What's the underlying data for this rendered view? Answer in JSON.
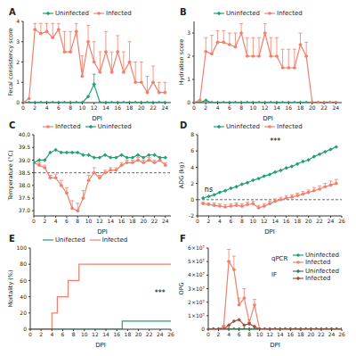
{
  "chart_data": [
    {
      "type": "line",
      "title": "A",
      "x_label": "DPI",
      "y_label": "Fecal consistency score",
      "x": [
        0,
        1,
        2,
        3,
        4,
        5,
        6,
        7,
        8,
        9,
        10,
        11,
        12,
        13,
        14,
        15,
        16,
        17,
        18,
        19,
        20,
        21,
        22,
        23,
        24
      ],
      "xlim": [
        0,
        25
      ],
      "xticks": [
        0,
        2,
        4,
        6,
        8,
        10,
        12,
        14,
        16,
        18,
        20,
        22,
        24
      ],
      "ylim": [
        0,
        4
      ],
      "yticks": [
        0,
        1,
        2,
        3,
        4
      ],
      "series": [
        {
          "name": "Uninfected",
          "color": "#23a174",
          "marker": "diamond",
          "values": [
            0,
            0,
            0,
            0,
            0,
            0,
            0,
            0,
            0,
            0,
            0,
            0.3,
            0.9,
            0,
            0,
            0,
            0,
            0,
            0,
            0,
            0,
            0,
            0,
            0,
            0
          ],
          "errors": [
            null,
            null,
            null,
            null,
            null,
            null,
            null,
            null,
            null,
            null,
            null,
            null,
            0.5,
            null,
            null,
            null,
            null,
            null,
            null,
            null,
            null,
            null,
            null,
            null,
            null
          ]
        },
        {
          "name": "Infected",
          "color": "#f0806c",
          "marker": "circle",
          "values": [
            0,
            0.2,
            3.6,
            3.4,
            3.5,
            3.2,
            3.6,
            2.5,
            2.5,
            3.5,
            1.3,
            3,
            2,
            1.5,
            2.5,
            1.5,
            2.5,
            1.5,
            2,
            1,
            1,
            0.5,
            1,
            0.5,
            0.5
          ],
          "errors": [
            null,
            null,
            0.3,
            0.5,
            0.4,
            0.7,
            0.3,
            1,
            1,
            0.4,
            1,
            0.8,
            1,
            1,
            1,
            1,
            0.8,
            1,
            1,
            1,
            1,
            0.8,
            0.8,
            0.5,
            0.5
          ]
        }
      ]
    },
    {
      "type": "line",
      "title": "B",
      "x_label": "DPI",
      "y_label": "Hydration score",
      "x": [
        0,
        1,
        2,
        3,
        4,
        5,
        6,
        7,
        8,
        9,
        10,
        11,
        12,
        13,
        14,
        15,
        16,
        17,
        18,
        19,
        20,
        21,
        22,
        23,
        24
      ],
      "xlim": [
        0,
        25
      ],
      "xticks": [
        0,
        2,
        4,
        6,
        8,
        10,
        12,
        14,
        16,
        18,
        20,
        22,
        24
      ],
      "ylim": [
        0,
        3.5
      ],
      "yticks": [
        0,
        1,
        2,
        3
      ],
      "series": [
        {
          "name": "Uninfected",
          "color": "#23a174",
          "marker": "diamond",
          "values": [
            0,
            0,
            0.1,
            0,
            0,
            0,
            0,
            0,
            0,
            0,
            0,
            0,
            0,
            0,
            0,
            0,
            0,
            0,
            0,
            0,
            0,
            0,
            0,
            0,
            0
          ]
        },
        {
          "name": "Infected",
          "color": "#f0806c",
          "marker": "circle",
          "values": [
            0,
            0.1,
            2.2,
            2.1,
            2.6,
            2.6,
            2.5,
            2.4,
            3,
            2,
            2,
            2,
            3,
            2,
            2,
            1.5,
            1.5,
            1.5,
            2.5,
            2,
            0,
            0,
            0,
            0,
            0
          ],
          "errors": [
            null,
            null,
            0.6,
            0.8,
            0.5,
            0.5,
            0.5,
            0.6,
            0.4,
            0.8,
            0.8,
            0.8,
            0.4,
            0.8,
            0.8,
            0.8,
            0.8,
            0.8,
            0.5,
            0.6,
            null,
            null,
            null,
            null,
            null
          ]
        }
      ]
    },
    {
      "type": "line",
      "title": "C",
      "x_label": "DPI",
      "y_label": "Temperature (°C)",
      "x": [
        0,
        1,
        2,
        3,
        4,
        5,
        6,
        7,
        8,
        9,
        10,
        11,
        12,
        13,
        14,
        15,
        16,
        17,
        18,
        19,
        20,
        21,
        22,
        23,
        24
      ],
      "xlim": [
        0,
        25
      ],
      "xticks": [
        0,
        2,
        4,
        6,
        8,
        10,
        12,
        14,
        16,
        18,
        20,
        22,
        24
      ],
      "ylim": [
        36.8,
        40
      ],
      "yticks": [
        {
          "value": 37,
          "label": "37.0"
        },
        37.5,
        {
          "value": 38,
          "label": "38.0"
        },
        38.5,
        {
          "value": 39,
          "label": "39.0"
        },
        39.5,
        {
          "value": 40,
          "label": "40.0"
        }
      ],
      "threshold": 38.5,
      "series": [
        {
          "name": "Infected",
          "color": "#f0806c",
          "marker": "circle",
          "values": [
            38.9,
            38.8,
            38.7,
            38.3,
            38.3,
            38.0,
            37.7,
            37.1,
            37.0,
            37.5,
            38.2,
            38.5,
            38.3,
            38.5,
            38.6,
            38.6,
            38.8,
            38.9,
            38.9,
            39.0,
            38.9,
            39.0,
            38.9,
            39.0,
            38.8
          ],
          "errors": [
            null,
            0.1,
            0.1,
            0.1,
            0.15,
            0.2,
            0.2,
            0.3,
            0.3,
            0.3,
            0.2,
            0.2,
            0.1,
            0.1,
            0.1,
            0.1,
            0.1,
            0.1,
            0.1,
            0.1,
            0.1,
            0.1,
            0.1,
            0.1,
            0.1
          ]
        },
        {
          "name": "Uninfected",
          "color": "#23a174",
          "marker": "diamond",
          "values": [
            38.9,
            39.0,
            39.0,
            39.3,
            39.4,
            39.3,
            39.3,
            39.3,
            39.3,
            39.2,
            39.2,
            39.1,
            39.1,
            39.2,
            39.1,
            39.1,
            39.2,
            39.1,
            39.1,
            39.2,
            39.1,
            39.2,
            39.2,
            39.1,
            39.1
          ]
        }
      ]
    },
    {
      "type": "line",
      "title": "D",
      "x_label": "DPI",
      "y_label": "ADG (kg)",
      "x": [
        1,
        2,
        3,
        4,
        5,
        6,
        7,
        8,
        9,
        10,
        11,
        12,
        13,
        14,
        15,
        16,
        17,
        18,
        19,
        20,
        21,
        22,
        23,
        24,
        25
      ],
      "xlim": [
        0,
        26
      ],
      "xticks": [
        0,
        2,
        4,
        6,
        8,
        10,
        12,
        14,
        16,
        18,
        20,
        22,
        24,
        26
      ],
      "ylim": [
        -2,
        8
      ],
      "yticks": [
        -2,
        0,
        2,
        4,
        6,
        8
      ],
      "threshold": 0,
      "annotations": [
        {
          "text": "ns",
          "x": 2,
          "y": 1.3
        },
        {
          "text": "***",
          "x": 14,
          "y": 7.2
        }
      ],
      "series": [
        {
          "name": "Uninfected",
          "color": "#23a174",
          "marker": "diamond",
          "values": [
            0.2,
            0.4,
            0.6,
            0.9,
            1.1,
            1.4,
            1.6,
            1.9,
            2.1,
            2.4,
            2.6,
            2.9,
            3.1,
            3.4,
            3.6,
            3.9,
            4.1,
            4.4,
            4.7,
            4.9,
            5.3,
            5.6,
            5.9,
            6.2,
            6.5
          ]
        },
        {
          "name": "Infected",
          "color": "#f0806c",
          "marker": "circle",
          "values": [
            -0.5,
            -0.6,
            -0.7,
            -0.8,
            -0.9,
            -0.8,
            -0.7,
            -0.8,
            -0.6,
            -0.5,
            -1.0,
            -0.8,
            -0.5,
            -0.2,
            0,
            0.2,
            0.3,
            0.5,
            0.7,
            0.9,
            1.1,
            1.3,
            1.6,
            1.8,
            2.0
          ],
          "errors": [
            0.2,
            0.2,
            0.3,
            0.3,
            0.3,
            0.3,
            0.3,
            0.3,
            0.3,
            0.3,
            0.3,
            0.3,
            0.3,
            0.3,
            0.3,
            0.3,
            0.3,
            0.3,
            0.3,
            0.3,
            0.4,
            0.4,
            0.4,
            0.5,
            0.5
          ]
        }
      ]
    },
    {
      "type": "step",
      "title": "E",
      "x_label": "DPI",
      "y_label": "Mortality (%)",
      "xlim": [
        0,
        26
      ],
      "xticks": [
        0,
        2,
        4,
        6,
        8,
        10,
        12,
        14,
        16,
        18,
        20,
        22,
        24,
        26
      ],
      "ylim": [
        0,
        100
      ],
      "yticks": [
        0,
        20,
        40,
        60,
        80,
        100
      ],
      "annotations": [
        {
          "text": "***",
          "x": 24,
          "y": 45
        }
      ],
      "series": [
        {
          "name": "Unifected",
          "color": "#23a174",
          "marker": "none",
          "x": [
            0,
            17,
            26
          ],
          "values": [
            0,
            10,
            10
          ]
        },
        {
          "name": "Infected",
          "color": "#f0806c",
          "marker": "none",
          "x": [
            0,
            4,
            5,
            7,
            9,
            26
          ],
          "values": [
            0,
            20,
            40,
            60,
            80,
            80
          ]
        }
      ]
    },
    {
      "type": "line",
      "title": "F",
      "x_label": "DPI",
      "y_label": "OPG",
      "x": [
        0,
        1,
        2,
        3,
        4,
        5,
        6,
        7,
        8,
        9,
        10,
        11,
        12,
        13,
        14,
        15,
        16,
        17,
        18,
        19,
        20,
        21,
        22,
        23,
        24,
        25,
        26
      ],
      "xlim": [
        0,
        26
      ],
      "xticks": [
        0,
        2,
        4,
        6,
        8,
        10,
        12,
        14,
        16,
        18,
        20,
        22,
        24,
        26
      ],
      "ylim": [
        0,
        60000000
      ],
      "yticks": [
        0,
        {
          "value": 10000000,
          "label": "1×10⁷"
        },
        {
          "value": 20000000,
          "label": "2×10⁷"
        },
        {
          "value": 30000000,
          "label": "3×10⁷"
        },
        {
          "value": 40000000,
          "label": "4×10⁷"
        },
        {
          "value": 50000000,
          "label": "5×10⁷"
        },
        {
          "value": 60000000,
          "label": "6×10⁷"
        }
      ],
      "series": [
        {
          "name": "Uninfected",
          "group": "qPCR",
          "color": "#23a174",
          "marker": "circle",
          "values": [
            0,
            0,
            0,
            0,
            0,
            0,
            0,
            0,
            0,
            0,
            0,
            0,
            0,
            0,
            0,
            0,
            0,
            0,
            0,
            0,
            0,
            0,
            0,
            0,
            0,
            0,
            0
          ]
        },
        {
          "name": "Infected",
          "group": "qPCR",
          "color": "#f0806c",
          "marker": "circle",
          "values": [
            0,
            0,
            0,
            2000000,
            50000000,
            44000000,
            18000000,
            23000000,
            5000000,
            18000000,
            0,
            0,
            0,
            0,
            0,
            0,
            0,
            0,
            0,
            0,
            0,
            0,
            0,
            0,
            0,
            0,
            0
          ],
          "errors": [
            null,
            null,
            null,
            1000000,
            9000000,
            10000000,
            5000000,
            7000000,
            2000000,
            4000000,
            null,
            null,
            null,
            null,
            null,
            null,
            null,
            null,
            null,
            null,
            null,
            null,
            null,
            null,
            null,
            null,
            null
          ]
        },
        {
          "name": "Uninfected",
          "group": "IF",
          "color": "#3f7a5c",
          "marker": "diamond",
          "values": [
            0,
            0,
            0,
            0,
            0,
            0,
            0,
            0,
            0,
            0,
            0,
            0,
            0,
            0,
            0,
            0,
            0,
            0,
            0,
            0,
            0,
            0,
            0,
            0,
            0,
            0,
            0
          ]
        },
        {
          "name": "Infected",
          "group": "IF",
          "color": "#a0503f",
          "marker": "diamond",
          "values": [
            0,
            0,
            0,
            0,
            3000000,
            6000000,
            7000000,
            3000000,
            4000000,
            2000000,
            0,
            0,
            0,
            0,
            0,
            0,
            0,
            0,
            0,
            0,
            0,
            0,
            0,
            0,
            0,
            0,
            0
          ]
        }
      ]
    }
  ]
}
